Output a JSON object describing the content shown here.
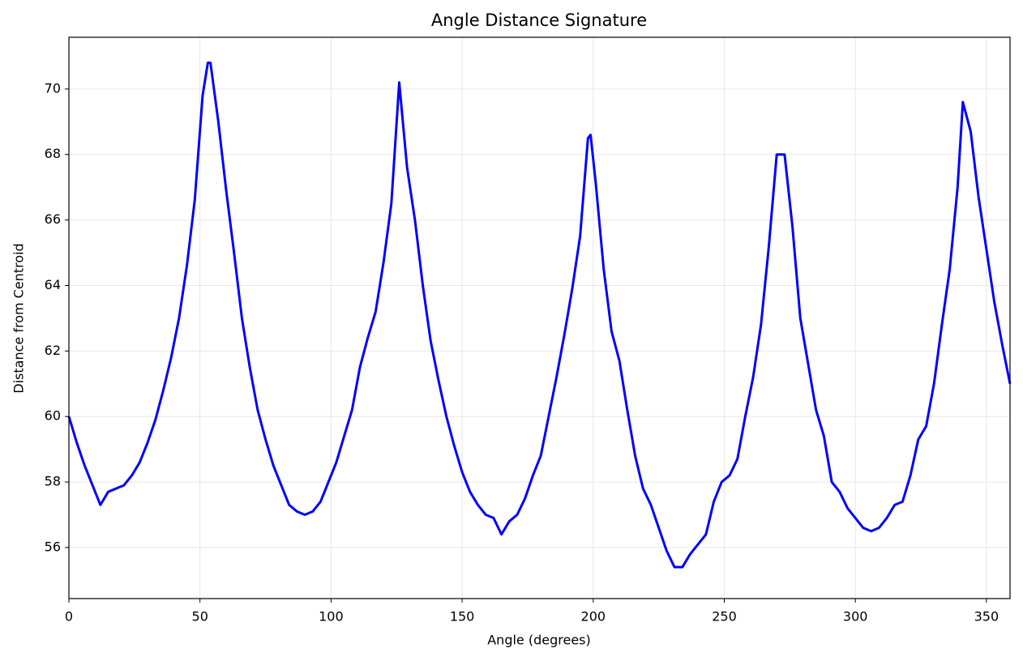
{
  "chart_data": {
    "type": "line",
    "title": "Angle Distance Signature",
    "x_label": "Angle (degrees)",
    "y_label": "Distance from Centroid",
    "x": [
      0,
      3,
      6,
      9,
      12,
      15,
      18,
      21,
      24,
      27,
      30,
      33,
      36,
      39,
      42,
      45,
      48,
      51,
      53,
      54,
      57,
      60,
      63,
      66,
      69,
      72,
      75,
      78,
      81,
      84,
      87,
      90,
      93,
      96,
      99,
      102,
      105,
      108,
      111,
      114,
      117,
      120,
      123,
      126,
      129,
      132,
      135,
      138,
      141,
      144,
      147,
      150,
      153,
      156,
      159,
      162,
      165,
      168,
      171,
      174,
      177,
      180,
      183,
      186,
      189,
      192,
      195,
      198,
      199,
      201,
      204,
      207,
      210,
      213,
      216,
      219,
      222,
      225,
      228,
      231,
      234,
      237,
      240,
      243,
      246,
      249,
      252,
      255,
      258,
      261,
      264,
      267,
      270,
      273,
      276,
      279,
      282,
      285,
      288,
      291,
      294,
      297,
      300,
      303,
      306,
      309,
      312,
      315,
      318,
      321,
      324,
      327,
      330,
      333,
      336,
      339,
      341,
      344,
      347,
      350,
      353,
      356,
      359
    ],
    "series": [
      {
        "name": "signature",
        "color": "#0000ff",
        "values": [
          60.0,
          59.2,
          58.5,
          57.9,
          57.3,
          57.7,
          57.8,
          57.9,
          58.2,
          58.6,
          59.2,
          59.9,
          60.8,
          61.8,
          63.0,
          64.6,
          66.6,
          69.8,
          70.8,
          70.8,
          69.0,
          66.9,
          65.0,
          63.0,
          61.5,
          60.2,
          59.3,
          58.5,
          57.9,
          57.3,
          57.1,
          57.0,
          57.1,
          57.4,
          58.0,
          58.6,
          59.4,
          60.2,
          61.5,
          62.4,
          63.2,
          64.7,
          66.5,
          70.2,
          67.6,
          66.0,
          64.0,
          62.3,
          61.1,
          60.0,
          59.1,
          58.3,
          57.7,
          57.3,
          57.0,
          56.9,
          56.4,
          56.8,
          57.0,
          57.5,
          58.2,
          58.8,
          60.0,
          61.2,
          62.5,
          63.9,
          65.5,
          68.5,
          68.6,
          67.1,
          64.5,
          62.6,
          61.7,
          60.2,
          58.8,
          57.8,
          57.3,
          56.6,
          55.9,
          55.4,
          55.4,
          55.8,
          56.1,
          56.4,
          57.4,
          58.0,
          58.2,
          58.7,
          60.0,
          61.2,
          62.8,
          65.2,
          68.0,
          68.0,
          65.8,
          63.0,
          61.6,
          60.2,
          59.4,
          58.0,
          57.7,
          57.2,
          56.9,
          56.6,
          56.5,
          56.6,
          56.9,
          57.3,
          57.4,
          58.2,
          59.3,
          59.7,
          61.0,
          62.8,
          64.5,
          67.0,
          69.6,
          68.7,
          66.7,
          65.1,
          63.5,
          62.2,
          61.0
        ]
      }
    ],
    "xlim": [
      0,
      359
    ],
    "ylim": [
      54.44,
      71.58
    ],
    "xticks": [
      0,
      50,
      100,
      150,
      200,
      250,
      300,
      350
    ],
    "yticks": [
      56,
      58,
      60,
      62,
      64,
      66,
      68,
      70
    ],
    "grid": true
  }
}
